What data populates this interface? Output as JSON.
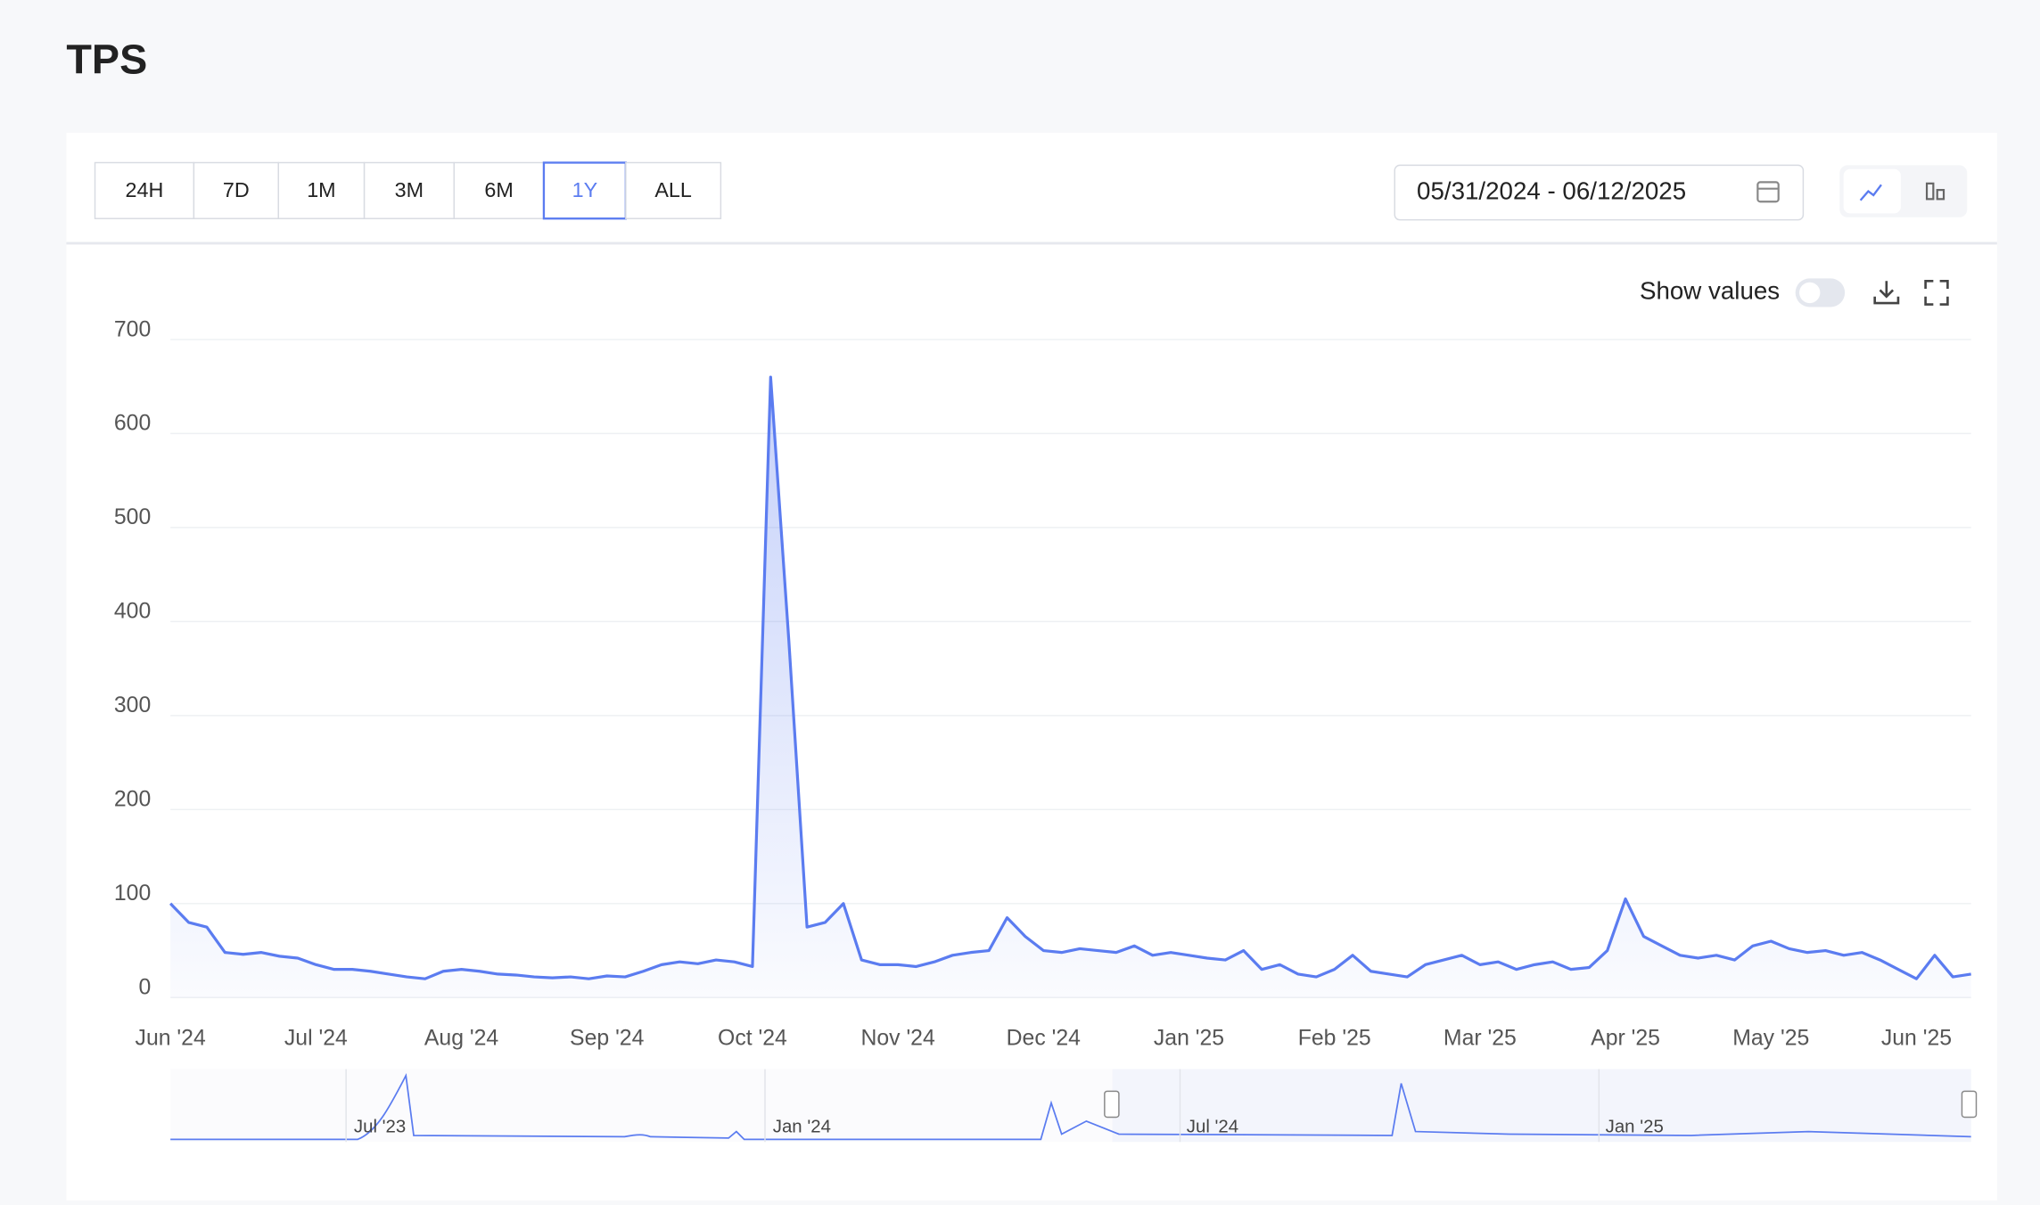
{
  "header": {
    "title": "TPS"
  },
  "toolbar": {
    "ranges": [
      "24H",
      "7D",
      "1M",
      "3M",
      "6M",
      "1Y",
      "ALL"
    ],
    "selected_range": "1Y",
    "date_range": "05/31/2024 - 06/12/2025"
  },
  "show_values_label": "Show values",
  "navigator_labels": [
    "Jul '23",
    "Jan '24",
    "Jul '24",
    "Jan '25"
  ],
  "chart_data": {
    "type": "line",
    "color": "#5b7cf0",
    "grid": true,
    "ylim": [
      0,
      700
    ],
    "yticks": [
      0,
      100,
      200,
      300,
      400,
      500,
      600,
      700
    ],
    "categories": [
      "Jun '24",
      null,
      null,
      null,
      null,
      null,
      null,
      null,
      "Jul '24",
      null,
      null,
      null,
      null,
      null,
      null,
      null,
      "Aug '24",
      null,
      null,
      null,
      null,
      null,
      null,
      null,
      "Sep '24",
      null,
      null,
      null,
      null,
      null,
      null,
      null,
      "Oct '24",
      null,
      null,
      null,
      null,
      null,
      null,
      null,
      "Nov '24",
      null,
      null,
      null,
      null,
      null,
      null,
      null,
      "Dec '24",
      null,
      null,
      null,
      null,
      null,
      null,
      null,
      "Jan '25",
      null,
      null,
      null,
      null,
      null,
      null,
      null,
      "Feb '25",
      null,
      null,
      null,
      null,
      null,
      null,
      null,
      "Mar '25",
      null,
      null,
      null,
      null,
      null,
      null,
      null,
      "Apr '25",
      null,
      null,
      null,
      null,
      null,
      null,
      null,
      "May '25",
      null,
      null,
      null,
      null,
      null,
      null,
      null,
      "Jun '25",
      null,
      null,
      null
    ],
    "series": [
      {
        "name": "TPS",
        "values": [
          100,
          80,
          75,
          48,
          46,
          48,
          44,
          42,
          35,
          30,
          30,
          28,
          25,
          22,
          20,
          28,
          30,
          28,
          25,
          24,
          22,
          21,
          22,
          20,
          23,
          22,
          28,
          35,
          38,
          36,
          40,
          38,
          33,
          660,
          380,
          75,
          80,
          100,
          40,
          35,
          35,
          33,
          38,
          45,
          48,
          50,
          85,
          65,
          50,
          48,
          52,
          50,
          48,
          55,
          45,
          48,
          45,
          42,
          40,
          50,
          30,
          35,
          25,
          22,
          30,
          45,
          28,
          25,
          22,
          35,
          40,
          45,
          35,
          38,
          30,
          35,
          38,
          30,
          32,
          50,
          105,
          65,
          55,
          45,
          42,
          45,
          40,
          55,
          60,
          52,
          48,
          50,
          45,
          48,
          40,
          30,
          20,
          45,
          22,
          25
        ]
      }
    ]
  }
}
